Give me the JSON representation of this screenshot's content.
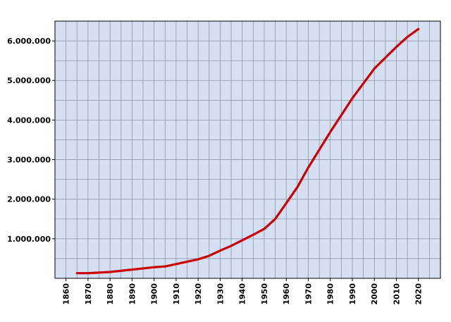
{
  "chart_data": {
    "type": "line",
    "x": [
      1865,
      1870,
      1880,
      1890,
      1900,
      1905,
      1910,
      1920,
      1925,
      1930,
      1935,
      1940,
      1945,
      1950,
      1955,
      1960,
      1965,
      1970,
      1980,
      1990,
      2000,
      2010,
      2015,
      2020
    ],
    "series": [
      {
        "color": "#cc0000",
        "values": [
          130000,
          130000,
          160000,
          220000,
          280000,
          300000,
          360000,
          480000,
          570000,
          700000,
          820000,
          960000,
          1100000,
          1250000,
          1500000,
          1900000,
          2300000,
          2800000,
          3700000,
          4550000,
          5300000,
          5850000,
          6100000,
          6300000
        ]
      }
    ],
    "xlim": [
      1855,
      2030
    ],
    "xticks": [
      1860,
      1870,
      1880,
      1890,
      1900,
      1910,
      1920,
      1930,
      1940,
      1950,
      1960,
      1970,
      1980,
      1990,
      2000,
      2010,
      2020
    ],
    "xminor": [
      1865,
      1875,
      1885,
      1895,
      1905,
      1915,
      1925,
      1935,
      1945,
      1955,
      1965,
      1975,
      1985,
      1995,
      2005,
      2015,
      2025
    ],
    "ylim": [
      0,
      6500000
    ],
    "yticks": [
      {
        "value": 1000000,
        "label": "1.000.000"
      },
      {
        "value": 2000000,
        "label": "2.000.000"
      },
      {
        "value": 3000000,
        "label": "3.000.000"
      },
      {
        "value": 4000000,
        "label": "4.000.000"
      },
      {
        "value": 5000000,
        "label": "5.000.000"
      },
      {
        "value": 6000000,
        "label": "6.000.000"
      }
    ],
    "yminor": [
      500000,
      1500000,
      2500000,
      3500000,
      4500000,
      5500000
    ],
    "grid": true,
    "background": "#d6e0f4"
  }
}
